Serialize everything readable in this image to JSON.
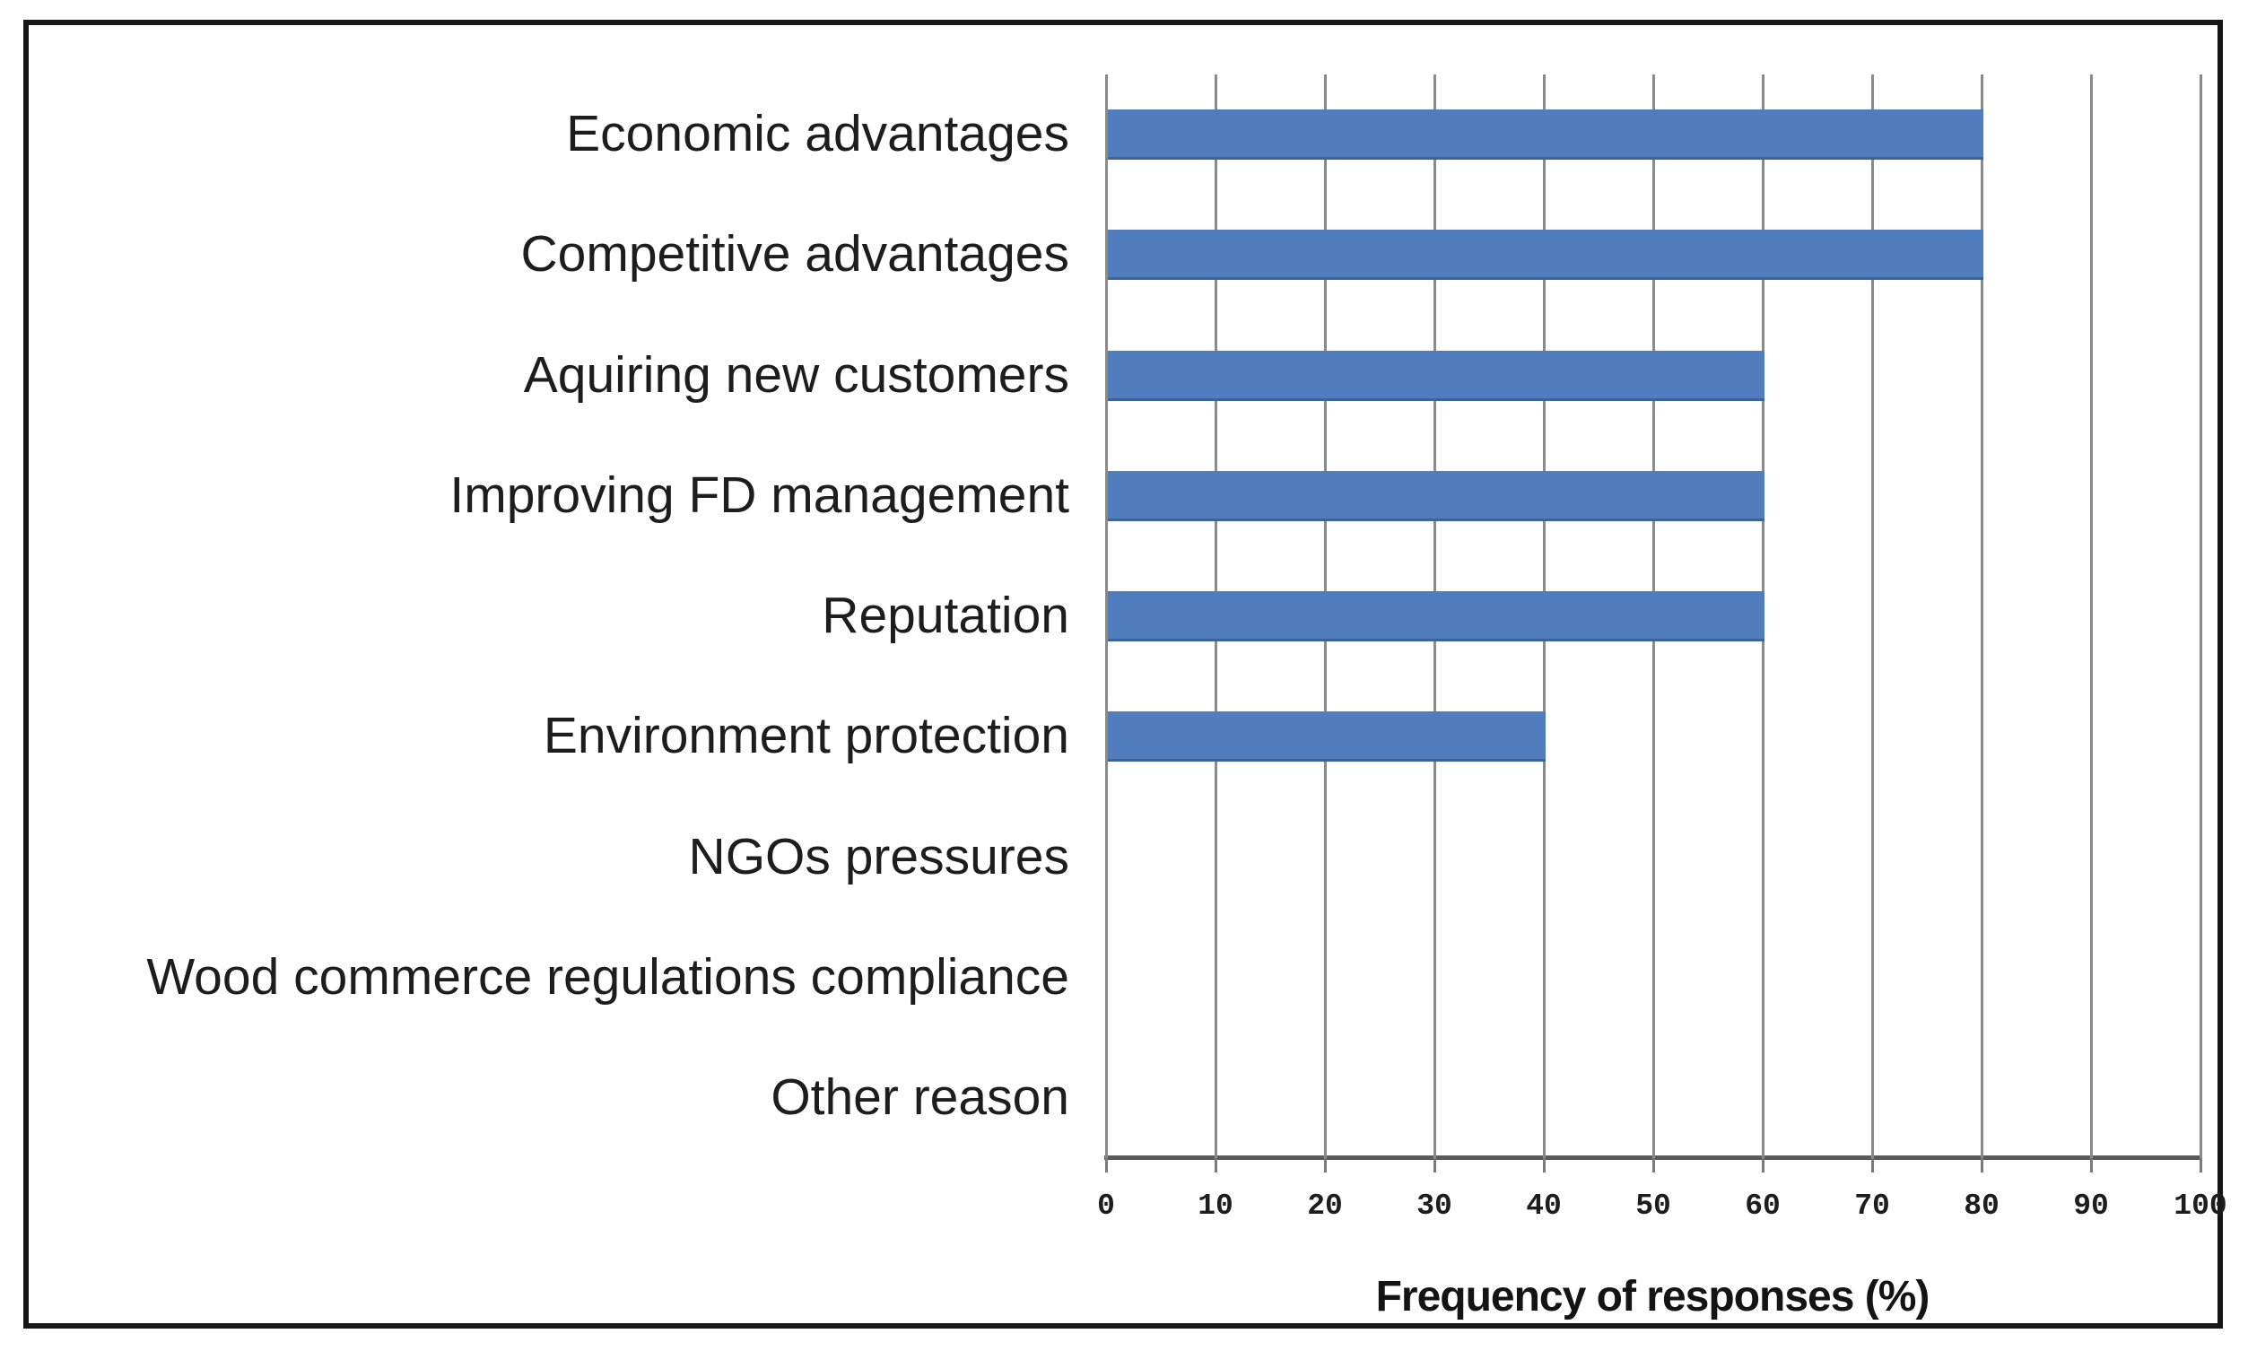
{
  "chart_data": {
    "type": "bar",
    "orientation": "horizontal",
    "title": "",
    "xlabel": "Frequency of responses (%)",
    "ylabel": "",
    "categories": [
      "Economic advantages",
      "Competitive advantages",
      "Aquiring new customers",
      "Improving FD management",
      "Reputation",
      "Environment protection",
      "NGOs pressures",
      "Wood commerce regulations compliance",
      "Other reason"
    ],
    "values": [
      80,
      80,
      60,
      60,
      60,
      40,
      0,
      0,
      0
    ],
    "xlim": [
      0,
      100
    ],
    "xticks": [
      0,
      10,
      20,
      30,
      40,
      50,
      60,
      70,
      80,
      90,
      100
    ],
    "grid": "vertical-gridlines-on",
    "legend": "none",
    "colors": {
      "bar": "#4F7DBD",
      "gridline": "#8a8a8a",
      "axis_line": "#5a5a5a",
      "text": "#1d1d1d",
      "frame_border": "#161616",
      "background": "#ffffff"
    }
  }
}
